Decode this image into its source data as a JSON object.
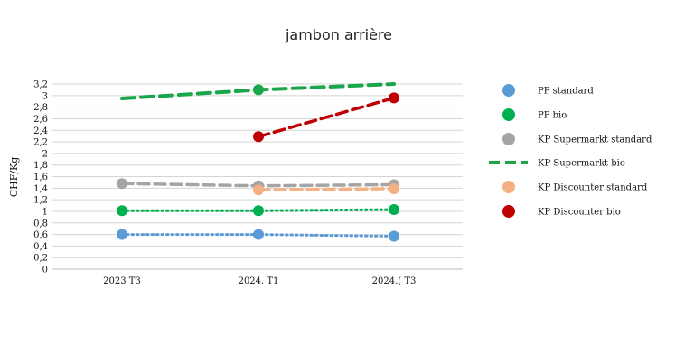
{
  "chart_data": {
    "type": "line",
    "title": "jambon arrière",
    "ylabel": "CHF/Kg",
    "xlabel": "",
    "categories": [
      "2023  T3",
      "2024.  T1",
      "2024.(  T3"
    ],
    "ylim": [
      0,
      3.2
    ],
    "yticks": [
      0,
      0.2,
      0.4,
      0.6,
      0.8,
      1,
      1.2,
      1.4,
      1.6,
      1.8,
      2,
      2.2,
      2.4,
      2.6,
      2.8,
      3,
      3.2
    ],
    "ytick_labels": [
      "0",
      "0,2",
      "0,4",
      "0,6",
      "0,8",
      "1",
      "1,2",
      "1,4",
      "1,6",
      "1,8",
      "2",
      "2,2",
      "2,4",
      "2,6",
      "2,8",
      "3",
      "3,2"
    ],
    "grid": true,
    "legend_position": "right",
    "series": [
      {
        "name": "PP standard",
        "color": "#5b9bd5",
        "style": "dotted",
        "values": [
          0.6,
          0.6,
          0.57
        ]
      },
      {
        "name": "PP bio",
        "color": "#00b050",
        "style": "dotted",
        "values": [
          1.01,
          1.01,
          1.03
        ]
      },
      {
        "name": "KP Supermarkt standard",
        "color": "#a5a5a5",
        "style": "dashed",
        "values": [
          1.48,
          1.44,
          1.46
        ]
      },
      {
        "name": "KP Supermarkt bio",
        "color": "#1aa64b",
        "style": "dashed",
        "legend_marker": "line",
        "values": [
          2.95,
          3.1,
          3.2
        ]
      },
      {
        "name": "KP Discounter standard",
        "color": "#f4b183",
        "style": "dashed",
        "values": [
          null,
          1.37,
          1.39
        ]
      },
      {
        "name": "KP Discounter bio",
        "color": "#c00000",
        "style": "dashed",
        "values": [
          null,
          2.29,
          2.96
        ]
      }
    ]
  }
}
